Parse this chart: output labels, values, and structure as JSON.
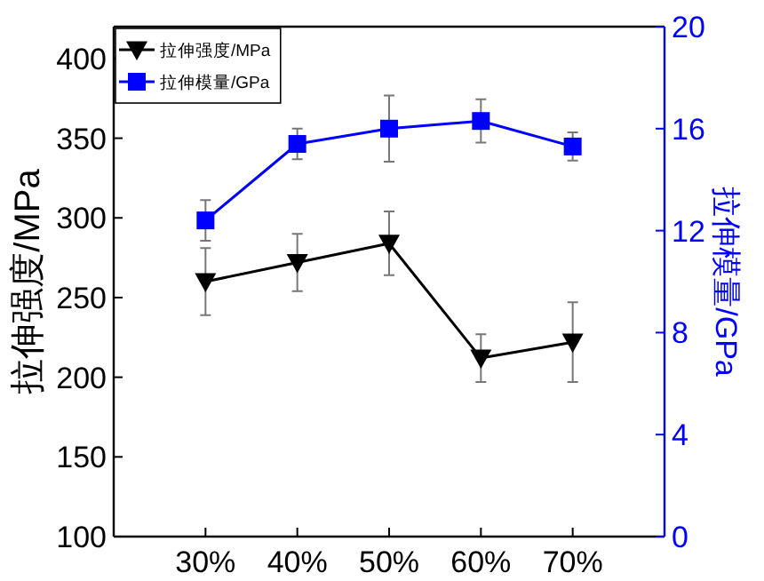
{
  "chart_data": {
    "type": "line",
    "ylabel": "拉伸强度/MPa",
    "y2label": "拉伸模量/GPa",
    "categories": [
      "30%",
      "40%",
      "50%",
      "60%",
      "70%"
    ],
    "ylim": [
      100,
      420
    ],
    "yticks": [
      100,
      150,
      200,
      250,
      300,
      350,
      400
    ],
    "y2lim": [
      0,
      20
    ],
    "y2ticks": [
      0,
      4,
      8,
      12,
      16,
      20
    ],
    "legend": "top left",
    "grid": false,
    "series": [
      {
        "name": "拉伸强度/MPa",
        "color": "#000000",
        "marker": "triangle",
        "values": [
          260,
          272,
          284,
          212,
          222
        ],
        "errors": [
          21,
          18,
          20,
          15,
          25
        ]
      },
      {
        "name": "拉伸模量/GPa",
        "color": "#0000ff",
        "marker": "square",
        "axis": "y2",
        "values": [
          12.4,
          15.4,
          16.0,
          16.3,
          15.3
        ],
        "errors": [
          0.8,
          0.6,
          1.3,
          0.85,
          0.55
        ]
      }
    ]
  }
}
